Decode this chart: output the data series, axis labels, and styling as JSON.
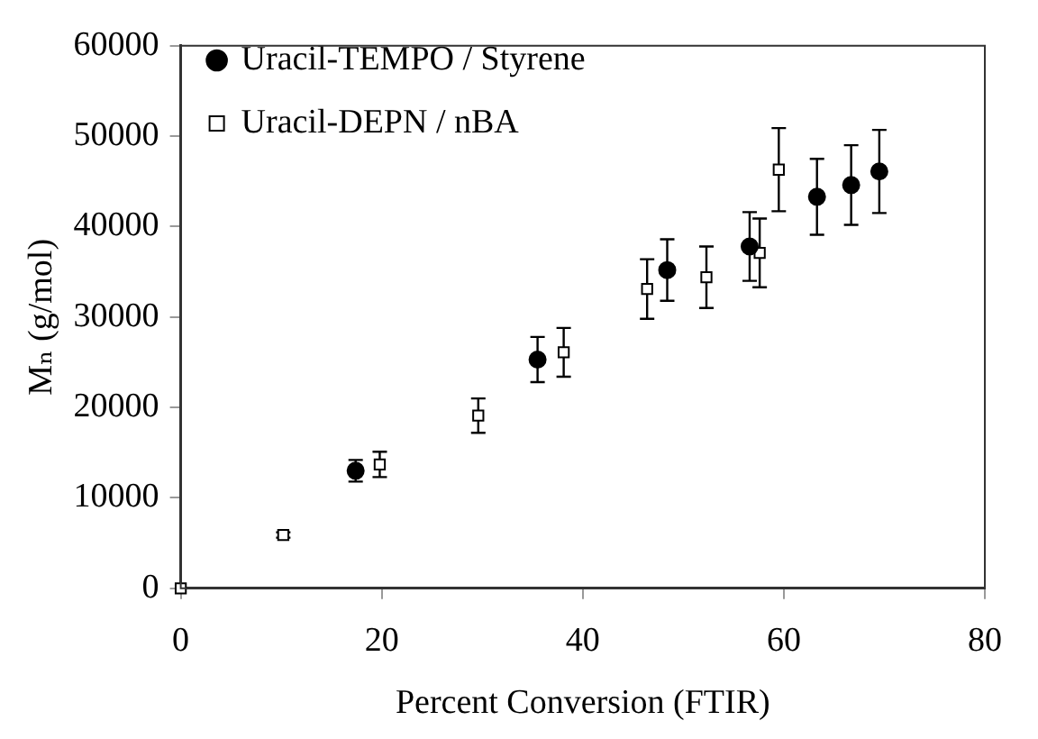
{
  "chart_data": {
    "type": "scatter",
    "xlabel": "Percent Conversion (FTIR)",
    "ylabel": "Mₙ (g/mol)",
    "xlim": [
      0,
      80
    ],
    "xticks": [
      0,
      20,
      40,
      60,
      80
    ],
    "ylim": [
      0,
      60000
    ],
    "yticks": [
      0,
      10000,
      20000,
      30000,
      40000,
      50000,
      60000
    ],
    "grid": false,
    "legend": "top left",
    "series": [
      {
        "name": "Uracil-TEMPO / Styrene",
        "color": "#000000",
        "marker": "circle",
        "x": [
          17.4,
          35.5,
          48.4,
          56.6,
          63.3,
          66.7,
          69.5
        ],
        "values": [
          13000,
          25300,
          35200,
          37800,
          43300,
          44600,
          46100
        ],
        "errors": [
          1200,
          2500,
          3400,
          3800,
          4200,
          4400,
          4600
        ]
      },
      {
        "name": "Uracil-DEPN / nBA",
        "color": "#000000",
        "marker": "square",
        "x": [
          0,
          10.2,
          19.8,
          29.6,
          38.1,
          46.4,
          52.3,
          57.6,
          59.5
        ],
        "values": [
          0,
          5900,
          13700,
          19100,
          26100,
          33100,
          34400,
          37100,
          46300
        ],
        "errors": [
          null,
          300,
          1400,
          1900,
          2700,
          3300,
          3400,
          3800,
          4600
        ]
      }
    ]
  }
}
